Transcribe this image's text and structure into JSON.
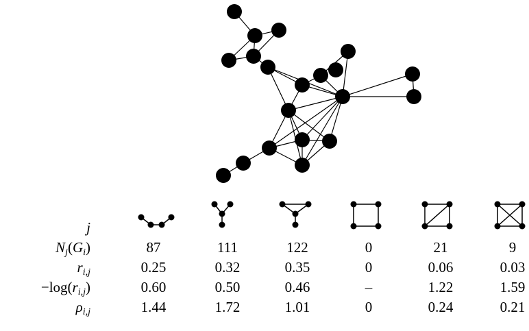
{
  "graph": {
    "node_count": 20,
    "edges": [
      [
        0,
        1
      ],
      [
        1,
        2
      ],
      [
        1,
        3
      ],
      [
        1,
        4
      ],
      [
        1,
        5
      ],
      [
        3,
        5
      ],
      [
        4,
        5
      ],
      [
        5,
        7
      ],
      [
        5,
        9
      ],
      [
        5,
        8
      ],
      [
        5,
        10
      ],
      [
        6,
        9
      ],
      [
        7,
        9
      ],
      [
        8,
        9
      ],
      [
        8,
        10
      ],
      [
        9,
        10
      ],
      [
        9,
        11
      ],
      [
        9,
        12
      ],
      [
        9,
        13
      ],
      [
        9,
        14
      ],
      [
        9,
        15
      ],
      [
        9,
        16
      ],
      [
        10,
        11
      ],
      [
        11,
        12
      ],
      [
        11,
        13
      ],
      [
        11,
        14
      ],
      [
        11,
        15
      ],
      [
        11,
        16
      ],
      [
        12,
        13
      ],
      [
        12,
        14
      ],
      [
        12,
        15
      ],
      [
        13,
        14
      ],
      [
        14,
        15
      ],
      [
        14,
        16
      ],
      [
        15,
        16
      ],
      [
        12,
        16
      ],
      [
        13,
        16
      ],
      [
        15,
        17
      ],
      [
        17,
        18
      ]
    ]
  },
  "table": {
    "rows": [
      {
        "id": "j",
        "label_html": "<i>j</i>",
        "values": []
      },
      {
        "id": "Nj",
        "label_html": "<i>N<sub>j</sub></i>(<i>G<sub>i</sub></i>)",
        "values": [
          "87",
          "111",
          "122",
          "0",
          "21",
          "9"
        ]
      },
      {
        "id": "r",
        "label_html": "<i>r<sub>i,j</sub></i>",
        "values": [
          "0.25",
          "0.32",
          "0.35",
          "0",
          "0.06",
          "0.03"
        ]
      },
      {
        "id": "neglog",
        "label_html": "−log(<i>r<sub>i,j</sub></i>)",
        "values": [
          "0.60",
          "0.50",
          "0.46",
          "–",
          "1.22",
          "1.59"
        ]
      },
      {
        "id": "rho",
        "label_html": "<i>ρ<sub>i,j</sub></i>",
        "values": [
          "1.44",
          "1.72",
          "1.01",
          "0",
          "0.24",
          "0.21"
        ]
      }
    ]
  },
  "motifs": [
    "path-3-edges-motif",
    "star-claw-motif",
    "paw-motif",
    "four-cycle-motif",
    "diamond-motif",
    "complete-k4-motif"
  ]
}
